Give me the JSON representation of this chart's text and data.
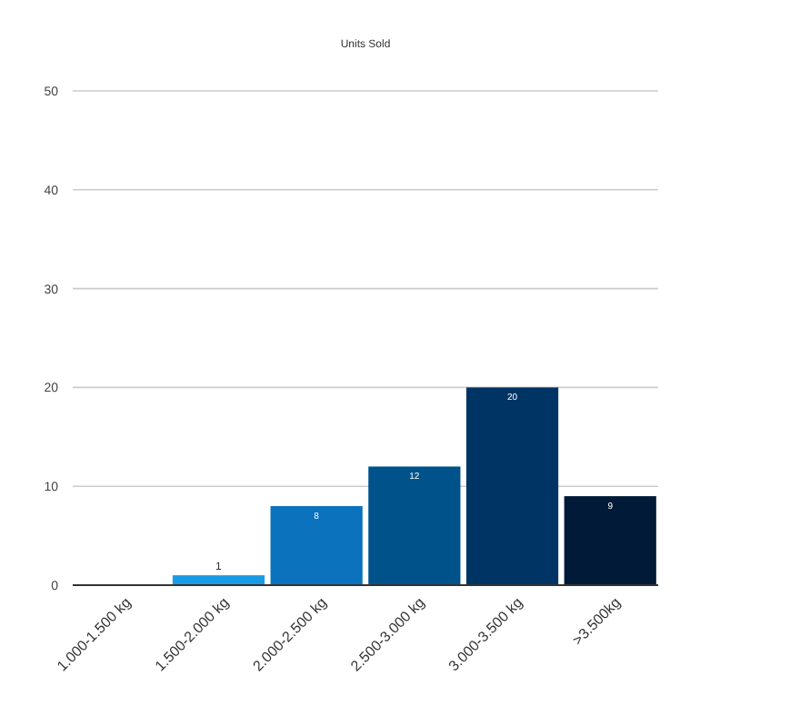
{
  "chart_data": {
    "type": "bar",
    "title": "Units Sold",
    "categories": [
      "1.000-1.500 kg",
      "1.500-2.000 kg",
      "2.000-2.500 kg",
      "2.500-3.000 kg",
      "3.000-3.500 kg",
      ">3.500kg"
    ],
    "values": [
      0,
      1,
      8,
      12,
      20,
      9
    ],
    "colors": [
      "#3aa0e6",
      "#1a9be6",
      "#0b72bd",
      "#00528a",
      "#003465",
      "#001a38"
    ],
    "value_labels": [
      null,
      "1",
      "8",
      "12",
      "20",
      "9"
    ],
    "ylim": [
      0,
      50
    ],
    "yticks": [
      0,
      10,
      20,
      30,
      40,
      50
    ],
    "grid": "y"
  }
}
